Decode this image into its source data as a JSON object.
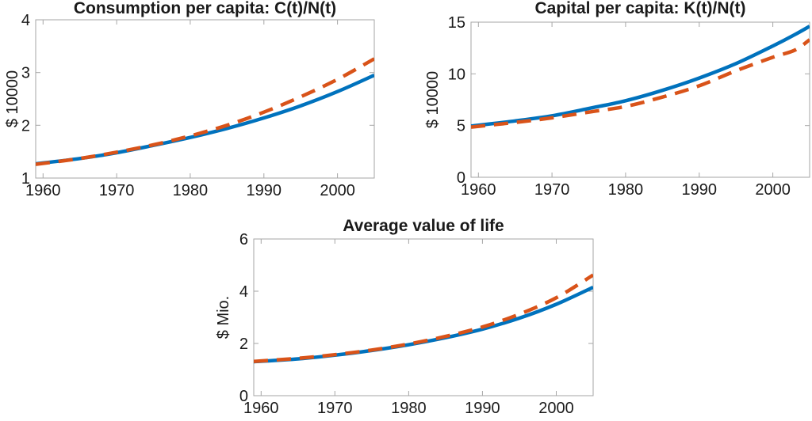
{
  "figure": {
    "background": "#ffffff",
    "axis_color": "#a6a6a6",
    "text_color": "#1a1a1a",
    "line_colors": {
      "solid": "#0072BD",
      "dashed": "#D95319"
    }
  },
  "chart_data": [
    {
      "type": "line",
      "title": "Consumption per capita: C(t)/N(t)",
      "xlabel": "",
      "ylabel": "$ 10000",
      "xlim": [
        1959,
        2005
      ],
      "ylim": [
        1,
        4
      ],
      "xticks": [
        1960,
        1970,
        1980,
        1990,
        2000
      ],
      "yticks": [
        1,
        2,
        3,
        4
      ],
      "grid": false,
      "legend": null,
      "x": [
        1959,
        1965,
        1970,
        1975,
        1980,
        1985,
        1990,
        1995,
        2000,
        2005
      ],
      "series": [
        {
          "name": "consumption-solid-blue",
          "line_style": "solid",
          "color": "#0072BD",
          "values": [
            1.27,
            1.37,
            1.48,
            1.62,
            1.77,
            1.94,
            2.14,
            2.37,
            2.64,
            2.95
          ]
        },
        {
          "name": "consumption-dashed-red",
          "line_style": "dashed",
          "color": "#D95319",
          "values": [
            1.26,
            1.37,
            1.49,
            1.63,
            1.8,
            2.0,
            2.25,
            2.54,
            2.87,
            3.26
          ]
        }
      ]
    },
    {
      "type": "line",
      "title": "Capital per capita: K(t)/N(t)",
      "xlabel": "",
      "ylabel": "$ 10000",
      "xlim": [
        1959,
        2005
      ],
      "ylim": [
        0,
        15
      ],
      "xticks": [
        1960,
        1970,
        1980,
        1990,
        2000
      ],
      "yticks": [
        0,
        5,
        10,
        15
      ],
      "grid": false,
      "legend": null,
      "x": [
        1959,
        1965,
        1970,
        1975,
        1980,
        1985,
        1990,
        1995,
        2000,
        2003,
        2005
      ],
      "series": [
        {
          "name": "capital-solid-blue",
          "line_style": "solid",
          "color": "#0072BD",
          "values": [
            4.95,
            5.45,
            5.95,
            6.65,
            7.4,
            8.4,
            9.6,
            11.0,
            12.7,
            13.8,
            14.6
          ]
        },
        {
          "name": "capital-dashed-red",
          "line_style": "dashed",
          "color": "#D95319",
          "values": [
            4.85,
            5.3,
            5.75,
            6.3,
            6.85,
            7.75,
            8.85,
            10.3,
            11.6,
            12.3,
            13.3
          ]
        }
      ]
    },
    {
      "type": "line",
      "title": "Average value of life",
      "xlabel": "",
      "ylabel": "$ Mio.",
      "xlim": [
        1959,
        2005
      ],
      "ylim": [
        0,
        6
      ],
      "xticks": [
        1960,
        1970,
        1980,
        1990,
        2000
      ],
      "yticks": [
        0,
        2,
        4,
        6
      ],
      "grid": false,
      "legend": null,
      "x": [
        1959,
        1965,
        1970,
        1975,
        1980,
        1985,
        1990,
        1995,
        2000,
        2005
      ],
      "series": [
        {
          "name": "value-of-life-solid-blue",
          "line_style": "solid",
          "color": "#0072BD",
          "values": [
            1.3,
            1.41,
            1.55,
            1.73,
            1.95,
            2.22,
            2.55,
            2.97,
            3.5,
            4.15
          ]
        },
        {
          "name": "value-of-life-dashed-red",
          "line_style": "dashed",
          "color": "#D95319",
          "values": [
            1.31,
            1.43,
            1.57,
            1.75,
            1.98,
            2.27,
            2.63,
            3.12,
            3.75,
            4.62
          ]
        }
      ]
    }
  ]
}
